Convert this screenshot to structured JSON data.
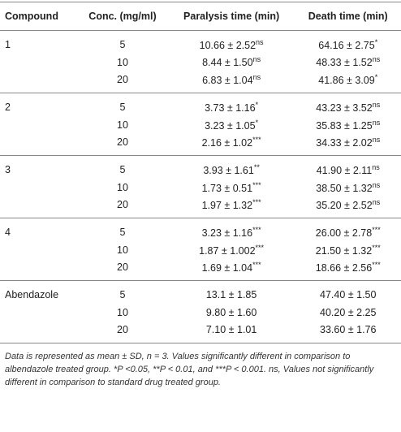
{
  "table": {
    "header": [
      "Compound",
      "Conc. (mg/ml)",
      "Paralysis time (min)",
      "Death time (min)"
    ],
    "groups": [
      {
        "compound": "1",
        "rows": [
          {
            "conc": 5,
            "paralysis": {
              "text": "10.66 ± 2.52",
              "sup": "ns"
            },
            "death": {
              "text": "64.16 ± 2.75",
              "sup": "*"
            }
          },
          {
            "conc": 10,
            "paralysis": {
              "text": "8.44 ± 1.50",
              "sup": "ns"
            },
            "death": {
              "text": "48.33 ± 1.52",
              "sup": "ns"
            }
          },
          {
            "conc": 20,
            "paralysis": {
              "text": "6.83 ± 1.04",
              "sup": "ns"
            },
            "death": {
              "text": "41.86 ± 3.09",
              "sup": "*"
            }
          }
        ]
      },
      {
        "compound": "2",
        "rows": [
          {
            "conc": 5,
            "paralysis": {
              "text": "3.73 ± 1.16",
              "sup": "*"
            },
            "death": {
              "text": "43.23 ± 3.52",
              "sup": "ns"
            }
          },
          {
            "conc": 10,
            "paralysis": {
              "text": "3.23 ± 1.05",
              "sup": "*"
            },
            "death": {
              "text": "35.83 ± 1.25",
              "sup": "ns"
            }
          },
          {
            "conc": 20,
            "paralysis": {
              "text": "2.16 ± 1.02",
              "sup": "***"
            },
            "death": {
              "text": "34.33 ± 2.02",
              "sup": "ns"
            }
          }
        ]
      },
      {
        "compound": "3",
        "rows": [
          {
            "conc": 5,
            "paralysis": {
              "text": "3.93 ± 1.61",
              "sup": "**"
            },
            "death": {
              "text": "41.90 ± 2.11",
              "sup": "ns"
            }
          },
          {
            "conc": 10,
            "paralysis": {
              "text": "1.73 ± 0.51",
              "sup": "***"
            },
            "death": {
              "text": "38.50 ± 1.32",
              "sup": "ns"
            }
          },
          {
            "conc": 20,
            "paralysis": {
              "text": "1.97 ± 1.32",
              "sup": "***"
            },
            "death": {
              "text": "35.20 ± 2.52",
              "sup": "ns"
            }
          }
        ]
      },
      {
        "compound": "4",
        "rows": [
          {
            "conc": 5,
            "paralysis": {
              "text": "3.23 ± 1.16",
              "sup": "***"
            },
            "death": {
              "text": "26.00 ± 2.78",
              "sup": "***"
            }
          },
          {
            "conc": 10,
            "paralysis": {
              "text": "1.87 ± 1.002",
              "sup": "***"
            },
            "death": {
              "text": "21.50 ± 1.32",
              "sup": "***"
            }
          },
          {
            "conc": 20,
            "paralysis": {
              "text": "1.69 ± 1.04",
              "sup": "***"
            },
            "death": {
              "text": "18.66 ± 2.56",
              "sup": "***"
            }
          }
        ]
      },
      {
        "compound": "Abendazole",
        "rows": [
          {
            "conc": 5,
            "paralysis": {
              "text": "13.1 ± 1.85"
            },
            "death": {
              "text": "47.40 ± 1.50"
            }
          },
          {
            "conc": 10,
            "paralysis": {
              "text": "9.80 ± 1.60"
            },
            "death": {
              "text": "40.20 ± 2.25"
            }
          },
          {
            "conc": 20,
            "paralysis": {
              "text": "7.10 ± 1.01"
            },
            "death": {
              "text": "33.60 ± 1.76"
            }
          }
        ]
      }
    ],
    "footnote": "Data is represented as mean ± SD, n = 3. Values significantly different in comparison to albendazole treated group. *P <0.05, **P < 0.01, and ***P < 0.001. ns, Values not significantly different in comparison to standard drug treated group."
  }
}
